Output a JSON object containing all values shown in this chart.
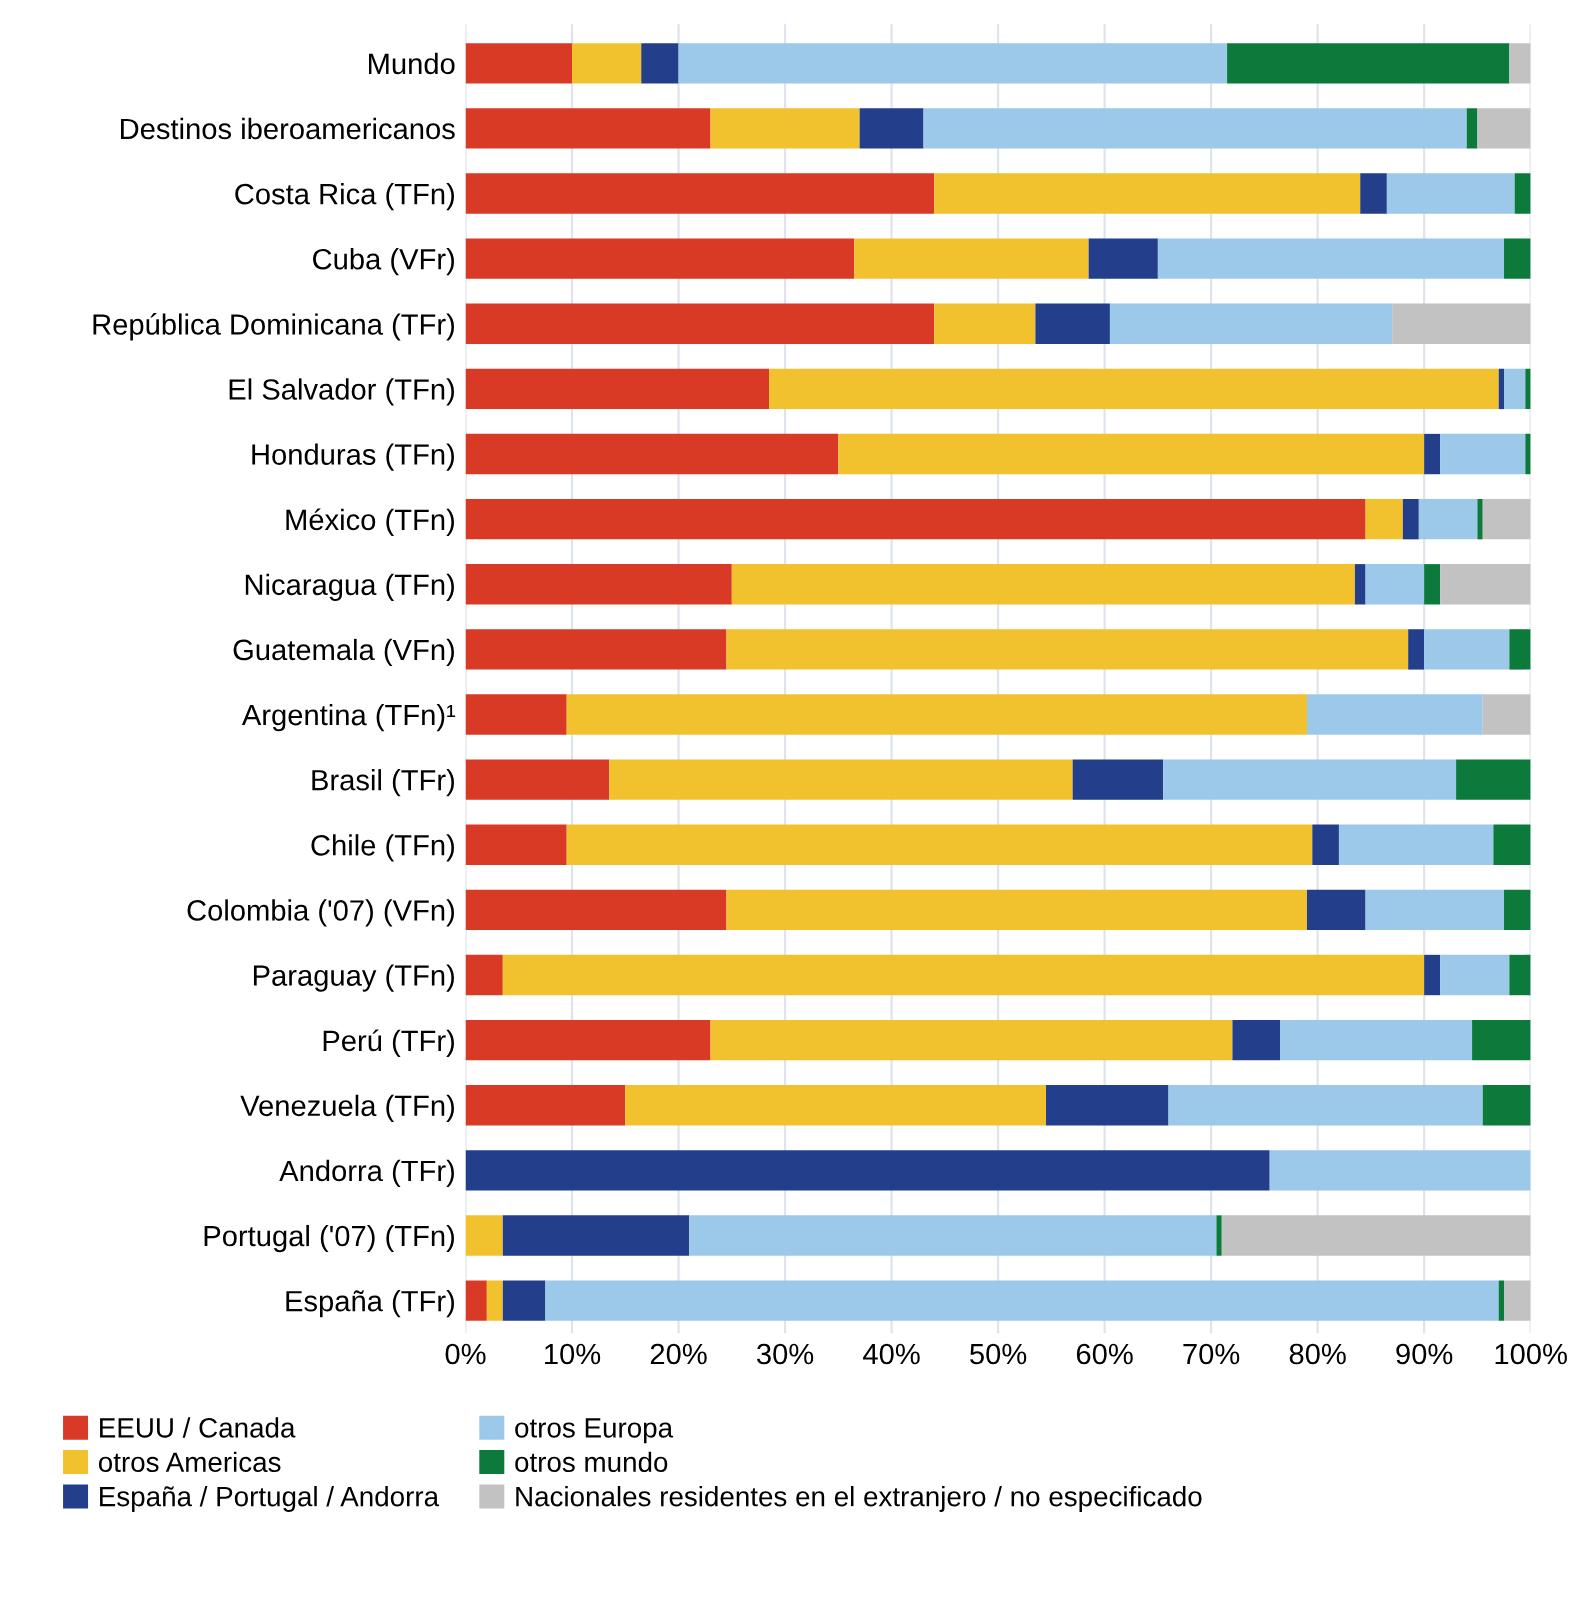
{
  "chart_data": {
    "type": "bar",
    "orientation": "horizontal",
    "stacked": true,
    "categories": [
      "Mundo",
      "Destinos iberoamericanos",
      "Costa Rica (TFn)",
      "Cuba (VFr)",
      "República Dominicana (TFr)",
      "El Salvador (TFn)",
      "Honduras (TFn)",
      "México (TFn)",
      "Nicaragua (TFn)",
      "Guatemala (VFn)",
      "Argentina (TFn)¹",
      "Brasil (TFr)",
      "Chile (TFn)",
      "Colombia ('07) (VFn)",
      "Paraguay (TFn)",
      "Perú (TFr)",
      "Venezuela (TFn)",
      "Andorra (TFr)",
      "Portugal ('07) (TFn)",
      "España (TFr)"
    ],
    "series": [
      {
        "name": "EEUU / Canada",
        "color": "#d93a26",
        "values": [
          10,
          23,
          44,
          36.5,
          44,
          28.5,
          35,
          84.5,
          25,
          24.5,
          9.5,
          13.5,
          9.5,
          24.5,
          3.5,
          23,
          15,
          0,
          0,
          2
        ]
      },
      {
        "name": "otros Americas",
        "color": "#f2c12e",
        "values": [
          6.5,
          14,
          40,
          22,
          9.5,
          68.5,
          55,
          3.5,
          58.5,
          64,
          69.5,
          43.5,
          70,
          54.5,
          86.5,
          49,
          39.5,
          0,
          3.5,
          1.5
        ]
      },
      {
        "name": "España / Portugal / Andorra",
        "color": "#233f8c",
        "values": [
          3.5,
          6,
          2.5,
          6.5,
          7,
          0.5,
          1.5,
          1.5,
          1,
          1.5,
          0,
          8.5,
          2.5,
          5.5,
          1.5,
          4.5,
          11.5,
          75.5,
          17.5,
          4
        ]
      },
      {
        "name": "otros Europa",
        "color": "#9cc8ea",
        "values": [
          51.5,
          51,
          12,
          32.5,
          26.5,
          2,
          8,
          5.5,
          5.5,
          8,
          16.5,
          27.5,
          14.5,
          13,
          6.5,
          18,
          29.5,
          24.5,
          49.5,
          89.5
        ]
      },
      {
        "name": "otros mundo",
        "color": "#0b7a3b",
        "values": [
          26.5,
          1,
          1.5,
          2.5,
          0,
          0.5,
          0.5,
          0.5,
          1.5,
          2,
          0,
          7,
          3.5,
          2.5,
          2,
          5.5,
          4.5,
          0,
          0.5,
          0.5
        ]
      },
      {
        "name": "Nacionales residentes en el extranjero / no especificado",
        "color": "#c2c2c2",
        "values": [
          2,
          5,
          0,
          0,
          13,
          0,
          0,
          4.5,
          8.5,
          0,
          4.5,
          0,
          0,
          0,
          0,
          0,
          0,
          0,
          29,
          2.5
        ]
      }
    ],
    "xlim": [
      0,
      100
    ],
    "xticks": [
      {
        "value": 0,
        "label": "0%"
      },
      {
        "value": 10,
        "label": "10%"
      },
      {
        "value": 20,
        "label": "20%"
      },
      {
        "value": 30,
        "label": "30%"
      },
      {
        "value": 40,
        "label": "40%"
      },
      {
        "value": 50,
        "label": "50%"
      },
      {
        "value": 60,
        "label": "60%"
      },
      {
        "value": 70,
        "label": "70%"
      },
      {
        "value": 80,
        "label": "80%"
      },
      {
        "value": 90,
        "label": "90%"
      },
      {
        "value": 100,
        "label": "100%"
      }
    ],
    "grid": "x",
    "legend": "bottom"
  }
}
